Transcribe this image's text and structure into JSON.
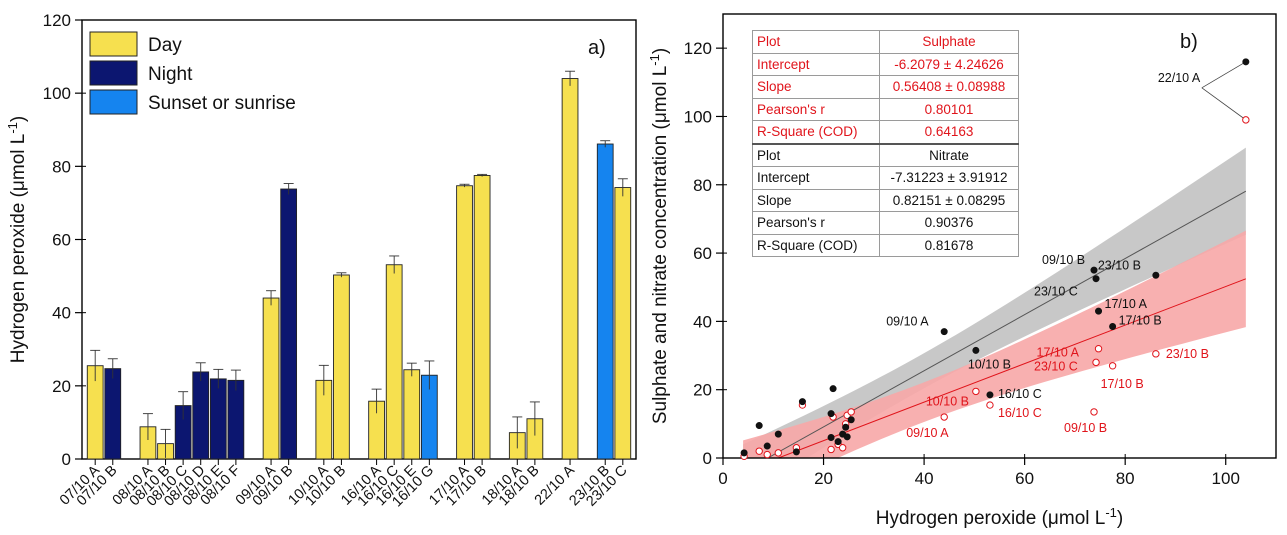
{
  "colors": {
    "day": "#f6e04f",
    "night": "#0c1670",
    "sunset": "#1584ef",
    "sulphate": "#e0141b",
    "sulphate_band": "#f7a7a7",
    "nitrate": "#111111",
    "nitrate_band": "#c8c8c8"
  },
  "chart_data": [
    {
      "type": "bar",
      "panel_label": "a)",
      "ylabel": "Hydrogen peroxide (μmol L",
      "ylabel_sup": "-1",
      "ylabel_close": ")",
      "ylim": [
        0,
        120
      ],
      "yticks": [
        "0",
        "20",
        "40",
        "60",
        "80",
        "100",
        "120"
      ],
      "legend": [
        {
          "key": "day",
          "label": "Day"
        },
        {
          "key": "night",
          "label": "Night"
        },
        {
          "key": "sunset",
          "label": "Sunset or sunrise"
        }
      ],
      "legend_position": "top-left",
      "bars": [
        {
          "label": "07/10 A",
          "value": 25.5,
          "err": 4.2,
          "type": "day",
          "slot": 0
        },
        {
          "label": "07/10 B",
          "value": 24.7,
          "err": 2.7,
          "type": "night",
          "slot": 1
        },
        {
          "label": "08/10 A",
          "value": 8.8,
          "err": 3.6,
          "type": "day",
          "slot": 3
        },
        {
          "label": "08/10 B",
          "value": 4.2,
          "err": 3.9,
          "type": "day",
          "slot": 4
        },
        {
          "label": "08/10 C",
          "value": 14.6,
          "err": 3.8,
          "type": "night",
          "slot": 5
        },
        {
          "label": "08/10 D",
          "value": 23.8,
          "err": 2.5,
          "type": "night",
          "slot": 6
        },
        {
          "label": "08/10 E",
          "value": 21.9,
          "err": 2.6,
          "type": "night",
          "slot": 7
        },
        {
          "label": "08/10 F",
          "value": 21.5,
          "err": 2.8,
          "type": "night",
          "slot": 8
        },
        {
          "label": "09/10 A",
          "value": 44.0,
          "err": 2.0,
          "type": "day",
          "slot": 10
        },
        {
          "label": "09/10 B",
          "value": 73.8,
          "err": 1.5,
          "type": "night",
          "slot": 11
        },
        {
          "label": "10/10 A",
          "value": 21.5,
          "err": 4.1,
          "type": "day",
          "slot": 13
        },
        {
          "label": "10/10 B",
          "value": 50.3,
          "err": 0.6,
          "type": "day",
          "slot": 14
        },
        {
          "label": "16/10 A",
          "value": 15.8,
          "err": 3.3,
          "type": "day",
          "slot": 16
        },
        {
          "label": "16/10 C",
          "value": 53.1,
          "err": 2.4,
          "type": "day",
          "slot": 17
        },
        {
          "label": "16/10 E",
          "value": 24.4,
          "err": 1.8,
          "type": "day",
          "slot": 18
        },
        {
          "label": "16/10 G",
          "value": 22.9,
          "err": 3.9,
          "type": "sunset",
          "slot": 19
        },
        {
          "label": "17/10 A",
          "value": 74.7,
          "err": 0.4,
          "type": "day",
          "slot": 21
        },
        {
          "label": "17/10 B",
          "value": 77.5,
          "err": 0.3,
          "type": "day",
          "slot": 22
        },
        {
          "label": "18/10 A",
          "value": 7.2,
          "err": 4.3,
          "type": "day",
          "slot": 24
        },
        {
          "label": "18/10 B",
          "value": 11.0,
          "err": 4.6,
          "type": "day",
          "slot": 25
        },
        {
          "label": "22/10 A",
          "value": 104.0,
          "err": 2.0,
          "type": "day",
          "slot": 27
        },
        {
          "label": "23/10 B",
          "value": 86.1,
          "err": 0.9,
          "type": "sunset",
          "slot": 29
        },
        {
          "label": "23/10 C",
          "value": 74.2,
          "err": 2.4,
          "type": "day",
          "slot": 30
        }
      ]
    },
    {
      "type": "scatter",
      "panel_label": "b)",
      "xlabel": "Hydrogen peroxide (μmol L",
      "xlabel_sup": "-1",
      "xlabel_close": ")",
      "ylabel": "Sulphate and nitrate concentration (μmol L",
      "ylabel_sup": "-1",
      "ylabel_close": ")",
      "xlim": [
        0,
        110
      ],
      "ylim": [
        0,
        130
      ],
      "xticks": [
        "0",
        "20",
        "40",
        "60",
        "80",
        "100"
      ],
      "yticks": [
        "0",
        "20",
        "40",
        "60",
        "80",
        "100",
        "120"
      ],
      "fits": {
        "sulphate": {
          "intercept": -6.2079,
          "slope": 0.56408,
          "x_range": [
            4,
            104
          ]
        },
        "nitrate": {
          "intercept": -7.31223,
          "slope": 0.82151,
          "x_range": [
            4,
            104
          ]
        }
      },
      "table": {
        "sulphate": [
          {
            "label": "Plot",
            "value": "Sulphate"
          },
          {
            "label": "Intercept",
            "value": "-6.2079 ± 4.24626"
          },
          {
            "label": "Slope",
            "value": "0.56408 ± 0.08988"
          },
          {
            "label": "Pearson's r",
            "value": "0.80101"
          },
          {
            "label": "R-Square (COD)",
            "value": "0.64163"
          }
        ],
        "nitrate": [
          {
            "label": "Plot",
            "value": "Nitrate"
          },
          {
            "label": "Intercept",
            "value": "-7.31223 ± 3.91912"
          },
          {
            "label": "Slope",
            "value": "0.82151 ± 0.08295"
          },
          {
            "label": "Pearson's r",
            "value": "0.90376"
          },
          {
            "label": "R-Square (COD)",
            "value": "0.81678"
          }
        ]
      },
      "series": [
        {
          "name": "Nitrate",
          "marker": "filled",
          "points": [
            {
              "x": 4.2,
              "y": 1.5
            },
            {
              "x": 7.2,
              "y": 9.5
            },
            {
              "x": 8.8,
              "y": 3.5
            },
            {
              "x": 11.0,
              "y": 7.0
            },
            {
              "x": 14.6,
              "y": 1.8
            },
            {
              "x": 15.8,
              "y": 16.5
            },
            {
              "x": 21.5,
              "y": 6.0
            },
            {
              "x": 21.5,
              "y": 13.0
            },
            {
              "x": 21.9,
              "y": 20.3
            },
            {
              "x": 22.9,
              "y": 4.8
            },
            {
              "x": 23.8,
              "y": 7.0
            },
            {
              "x": 24.4,
              "y": 9.0
            },
            {
              "x": 24.7,
              "y": 6.2
            },
            {
              "x": 25.5,
              "y": 11.2
            },
            {
              "x": 44.0,
              "y": 37.0
            },
            {
              "x": 50.3,
              "y": 31.5
            },
            {
              "x": 53.1,
              "y": 18.5
            },
            {
              "x": 73.8,
              "y": 55.0
            },
            {
              "x": 74.2,
              "y": 52.5
            },
            {
              "x": 74.7,
              "y": 43.0
            },
            {
              "x": 77.5,
              "y": 38.5
            },
            {
              "x": 86.1,
              "y": 53.5
            },
            {
              "x": 104.0,
              "y": 116.0
            }
          ]
        },
        {
          "name": "Sulphate",
          "marker": "open",
          "points": [
            {
              "x": 4.2,
              "y": 0.5
            },
            {
              "x": 7.2,
              "y": 2.0
            },
            {
              "x": 8.8,
              "y": 1.0
            },
            {
              "x": 11.0,
              "y": 1.5
            },
            {
              "x": 14.6,
              "y": 3.0
            },
            {
              "x": 15.8,
              "y": 15.5
            },
            {
              "x": 21.5,
              "y": 2.5
            },
            {
              "x": 21.9,
              "y": 12.0
            },
            {
              "x": 22.9,
              "y": 4.0
            },
            {
              "x": 23.8,
              "y": 3.0
            },
            {
              "x": 24.4,
              "y": 10.0
            },
            {
              "x": 24.7,
              "y": 12.5
            },
            {
              "x": 25.5,
              "y": 13.5
            },
            {
              "x": 44.0,
              "y": 12.0
            },
            {
              "x": 50.3,
              "y": 19.5
            },
            {
              "x": 53.1,
              "y": 15.5
            },
            {
              "x": 73.8,
              "y": 13.5
            },
            {
              "x": 74.2,
              "y": 28.0
            },
            {
              "x": 74.7,
              "y": 32.0
            },
            {
              "x": 77.5,
              "y": 27.0
            },
            {
              "x": 86.1,
              "y": 30.5
            },
            {
              "x": 104.0,
              "y": 99.0
            }
          ]
        }
      ],
      "annotations": [
        {
          "text": "22/10 A",
          "color": "black",
          "x": 104.0,
          "y": 116.0
        },
        {
          "text": "09/10 B",
          "color": "black",
          "x": 73.8,
          "y": 55.0
        },
        {
          "text": "23/10 B",
          "color": "black",
          "x": 86.1,
          "y": 53.5
        },
        {
          "text": "23/10 C",
          "color": "black",
          "x": 74.2,
          "y": 52.5
        },
        {
          "text": "17/10 A",
          "color": "black",
          "x": 74.7,
          "y": 43.0
        },
        {
          "text": "17/10 B",
          "color": "black",
          "x": 77.5,
          "y": 38.5
        },
        {
          "text": "09/10 A",
          "color": "black",
          "x": 44.0,
          "y": 37.0
        },
        {
          "text": "10/10 B",
          "color": "black",
          "x": 50.3,
          "y": 31.5
        },
        {
          "text": "16/10 C",
          "color": "black",
          "x": 53.1,
          "y": 18.5
        },
        {
          "text": "17/10 A",
          "color": "red",
          "x": 74.7,
          "y": 32.0
        },
        {
          "text": "23/10 C",
          "color": "red",
          "x": 74.2,
          "y": 28.0
        },
        {
          "text": "23/10 B",
          "color": "red",
          "x": 86.1,
          "y": 30.5
        },
        {
          "text": "17/10 B",
          "color": "red",
          "x": 77.5,
          "y": 27.0
        },
        {
          "text": "10/10 B",
          "color": "red",
          "x": 50.3,
          "y": 19.5
        },
        {
          "text": "16/10 C",
          "color": "red",
          "x": 53.1,
          "y": 15.5
        },
        {
          "text": "09/10 A",
          "color": "red",
          "x": 44.0,
          "y": 12.0
        },
        {
          "text": "09/10 B",
          "color": "red",
          "x": 73.8,
          "y": 13.5
        }
      ]
    }
  ]
}
